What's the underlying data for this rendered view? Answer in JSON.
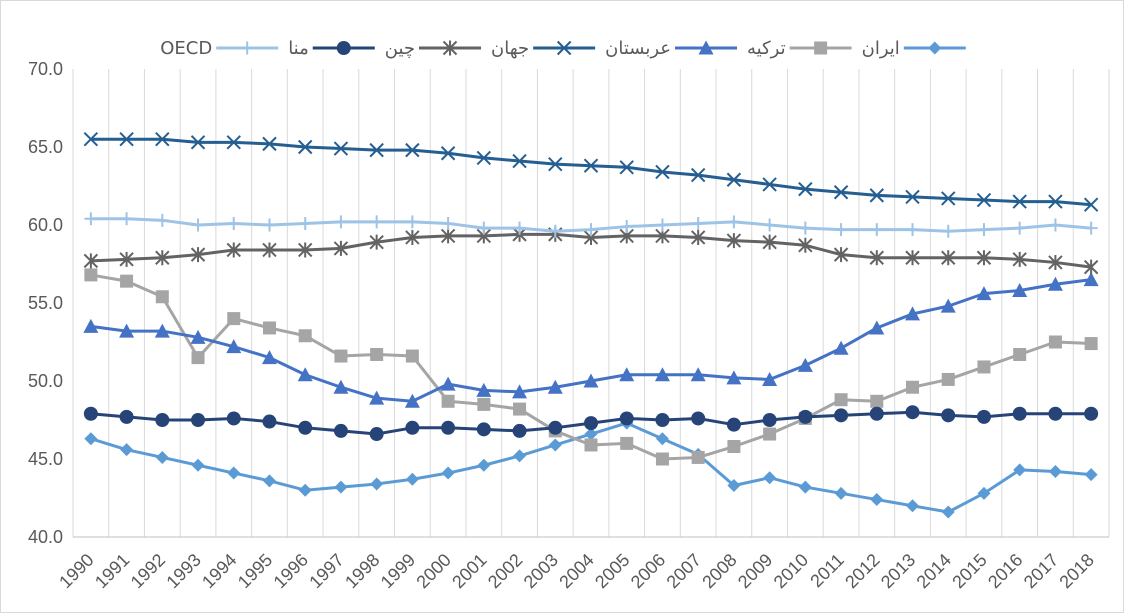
{
  "chart_data": {
    "type": "line",
    "title": "",
    "xlabel": "",
    "ylabel": "",
    "ylim": [
      40.0,
      70.0
    ],
    "yticks": [
      "40.0",
      "45.0",
      "50.0",
      "55.0",
      "60.0",
      "65.0",
      "70.0"
    ],
    "grid": "vertical",
    "legend": "top",
    "x": [
      "1990",
      "1991",
      "1992",
      "1993",
      "1994",
      "1995",
      "1996",
      "1997",
      "1998",
      "1999",
      "2000",
      "2001",
      "2002",
      "2003",
      "2004",
      "2005",
      "2006",
      "2007",
      "2008",
      "2009",
      "2010",
      "2011",
      "2012",
      "2013",
      "2014",
      "2015",
      "2016",
      "2017",
      "2018"
    ],
    "series": [
      {
        "name": "ایران",
        "color": "#5b9bd5",
        "marker": "diamond",
        "values": [
          46.3,
          45.6,
          45.1,
          44.6,
          44.1,
          43.6,
          43.0,
          43.2,
          43.4,
          43.7,
          44.1,
          44.6,
          45.2,
          45.9,
          46.6,
          47.3,
          46.3,
          45.3,
          43.3,
          43.8,
          43.2,
          42.8,
          42.4,
          42.0,
          41.6,
          42.8,
          44.3,
          44.2,
          44.0
        ]
      },
      {
        "name": "ترکیه",
        "color": "#a5a5a5",
        "marker": "square",
        "values": [
          56.8,
          56.4,
          55.4,
          51.5,
          54.0,
          53.4,
          52.9,
          51.6,
          51.7,
          51.6,
          48.7,
          48.5,
          48.2,
          46.8,
          45.9,
          46.0,
          45.0,
          45.1,
          45.8,
          46.6,
          47.6,
          48.8,
          48.7,
          49.6,
          50.1,
          50.9,
          51.7,
          52.5,
          52.4
        ]
      },
      {
        "name": "عربستان",
        "color": "#4472c4",
        "marker": "triangle",
        "values": [
          53.5,
          53.2,
          53.2,
          52.8,
          52.2,
          51.5,
          50.4,
          49.6,
          48.9,
          48.7,
          49.8,
          49.4,
          49.3,
          49.6,
          50.0,
          50.4,
          50.4,
          50.4,
          50.2,
          50.1,
          51.0,
          52.1,
          53.4,
          54.3,
          54.8,
          55.6,
          55.8,
          56.2,
          56.5
        ]
      },
      {
        "name": "جهان",
        "color": "#255e91",
        "marker": "x",
        "values": [
          65.5,
          65.5,
          65.5,
          65.3,
          65.3,
          65.2,
          65.0,
          64.9,
          64.8,
          64.8,
          64.6,
          64.3,
          64.1,
          63.9,
          63.8,
          63.7,
          63.4,
          63.2,
          62.9,
          62.6,
          62.3,
          62.1,
          61.9,
          61.8,
          61.7,
          61.6,
          61.5,
          61.5,
          61.3
        ]
      },
      {
        "name": "چین",
        "color": "#636363",
        "marker": "asterisk",
        "values": [
          57.7,
          57.8,
          57.9,
          58.1,
          58.4,
          58.4,
          58.4,
          58.5,
          58.9,
          59.2,
          59.3,
          59.3,
          59.4,
          59.4,
          59.2,
          59.3,
          59.3,
          59.2,
          59.0,
          58.9,
          58.7,
          58.1,
          57.9,
          57.9,
          57.9,
          57.9,
          57.8,
          57.6,
          57.3
        ]
      },
      {
        "name": "منا",
        "color": "#264478",
        "marker": "circle",
        "values": [
          47.9,
          47.7,
          47.5,
          47.5,
          47.6,
          47.4,
          47.0,
          46.8,
          46.6,
          47.0,
          47.0,
          46.9,
          46.8,
          47.0,
          47.3,
          47.6,
          47.5,
          47.6,
          47.2,
          47.5,
          47.7,
          47.8,
          47.9,
          48.0,
          47.8,
          47.7,
          47.9,
          47.9,
          47.9
        ]
      },
      {
        "name": "OECD",
        "color": "#9dc3e6",
        "marker": "plus",
        "values": [
          60.4,
          60.4,
          60.3,
          60.0,
          60.1,
          60.0,
          60.1,
          60.2,
          60.2,
          60.2,
          60.1,
          59.8,
          59.8,
          59.6,
          59.7,
          59.9,
          60.0,
          60.1,
          60.2,
          60.0,
          59.8,
          59.7,
          59.7,
          59.7,
          59.6,
          59.7,
          59.8,
          60.0,
          59.8
        ]
      }
    ]
  }
}
